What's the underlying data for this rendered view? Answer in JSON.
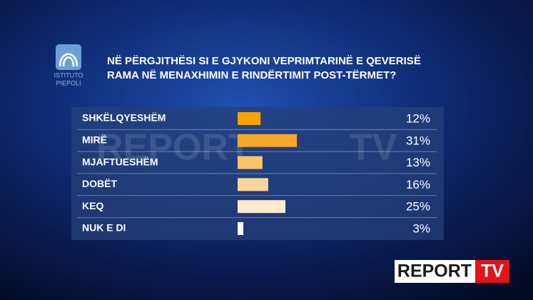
{
  "chart_data": {
    "type": "bar",
    "title": [
      "NË PËRGJITHËSI SI E GJYKONI VEPRIMTARINË E QEVERISË",
      "RAMA  NË MENAXHIMIN E RINDËRTIMIT POST-TËRMET?"
    ],
    "categories": [
      "SHKËLQYESHËM",
      "MIRË",
      "MJAFTUESHËM",
      "DOBËT",
      "KEQ",
      "NUK E DI"
    ],
    "values": [
      12,
      31,
      13,
      16,
      25,
      3
    ],
    "value_labels": [
      "12%",
      "31%",
      "13%",
      "16%",
      "25%",
      "3%"
    ],
    "colors": [
      "#f6a200",
      "#f7a72a",
      "#fbc46c",
      "#fcd59b",
      "#feebcf",
      "#ffffff"
    ],
    "logo": [
      "ISTITUTO",
      "PIEPOLI"
    ],
    "watermark": [
      "REPORT",
      "TV"
    ],
    "brand": [
      "REPORT",
      "TV"
    ]
  }
}
